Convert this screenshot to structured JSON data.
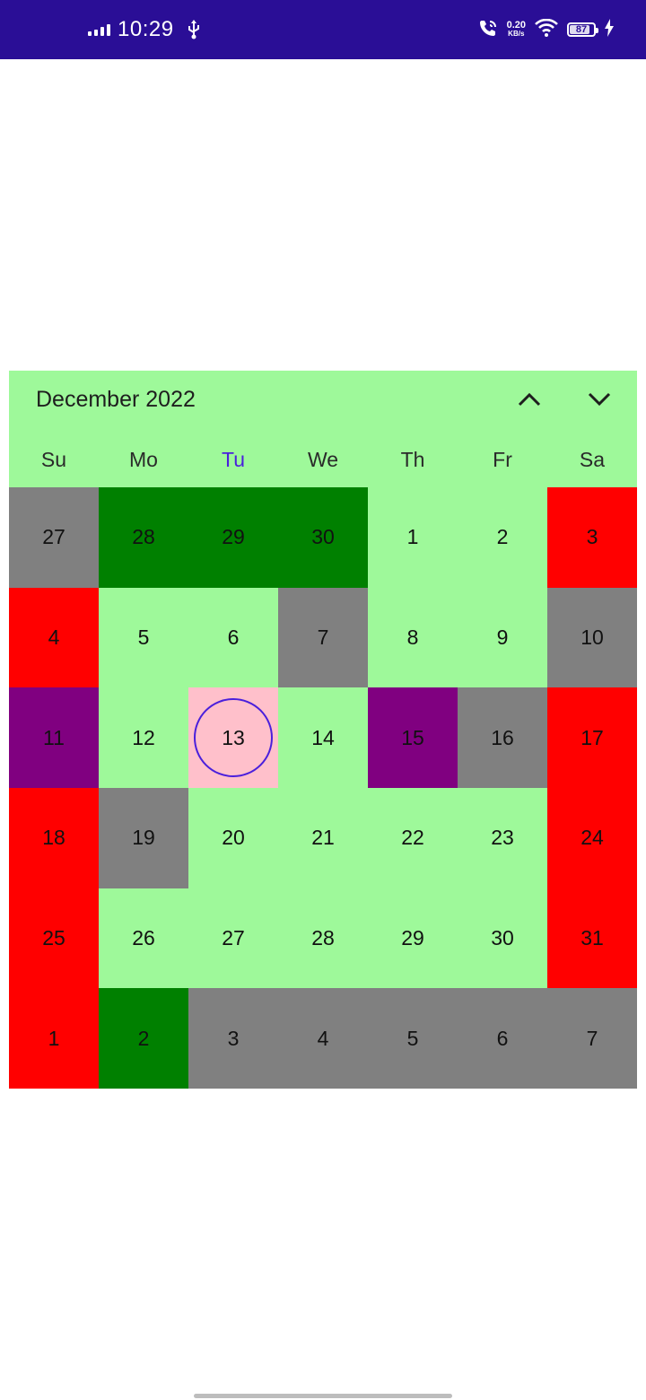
{
  "status_bar": {
    "time": "10:29",
    "net_speed_value": "0.20",
    "net_speed_unit": "KB/s",
    "battery_level": "87",
    "battery_percent": 87,
    "background": "#2a0e96",
    "icons": [
      "signal-icon",
      "usb-icon",
      "wifi-call-icon",
      "wifi-icon",
      "battery-icon",
      "charging-icon"
    ]
  },
  "calendar": {
    "title": "December 2022",
    "nav_icons": {
      "prev": "chevron-up-icon",
      "next": "chevron-down-icon"
    },
    "weekdays": [
      "Su",
      "Mo",
      "Tu",
      "We",
      "Th",
      "Fr",
      "Sa"
    ],
    "today_weekday_index": 2,
    "selected_day": "13",
    "colors": {
      "header_bg": "#9ef99a",
      "light_green": "#9ef99a",
      "green": "#008000",
      "red": "#ff0000",
      "gray": "#808080",
      "purple": "#800080",
      "pink": "#ffc0cb",
      "accent": "#4a1fdc"
    },
    "weeks": [
      [
        {
          "day": "27",
          "color": "gray"
        },
        {
          "day": "28",
          "color": "green"
        },
        {
          "day": "29",
          "color": "green"
        },
        {
          "day": "30",
          "color": "green"
        },
        {
          "day": "1",
          "color": "light_green"
        },
        {
          "day": "2",
          "color": "light_green"
        },
        {
          "day": "3",
          "color": "red"
        }
      ],
      [
        {
          "day": "4",
          "color": "red"
        },
        {
          "day": "5",
          "color": "light_green"
        },
        {
          "day": "6",
          "color": "light_green"
        },
        {
          "day": "7",
          "color": "gray"
        },
        {
          "day": "8",
          "color": "light_green"
        },
        {
          "day": "9",
          "color": "light_green"
        },
        {
          "day": "10",
          "color": "gray"
        }
      ],
      [
        {
          "day": "11",
          "color": "purple"
        },
        {
          "day": "12",
          "color": "light_green"
        },
        {
          "day": "13",
          "color": "pink",
          "selected": true
        },
        {
          "day": "14",
          "color": "light_green"
        },
        {
          "day": "15",
          "color": "purple"
        },
        {
          "day": "16",
          "color": "gray"
        },
        {
          "day": "17",
          "color": "red"
        }
      ],
      [
        {
          "day": "18",
          "color": "red"
        },
        {
          "day": "19",
          "color": "gray"
        },
        {
          "day": "20",
          "color": "light_green"
        },
        {
          "day": "21",
          "color": "light_green"
        },
        {
          "day": "22",
          "color": "light_green"
        },
        {
          "day": "23",
          "color": "light_green"
        },
        {
          "day": "24",
          "color": "red"
        }
      ],
      [
        {
          "day": "25",
          "color": "red"
        },
        {
          "day": "26",
          "color": "light_green"
        },
        {
          "day": "27",
          "color": "light_green"
        },
        {
          "day": "28",
          "color": "light_green"
        },
        {
          "day": "29",
          "color": "light_green"
        },
        {
          "day": "30",
          "color": "light_green"
        },
        {
          "day": "31",
          "color": "red"
        }
      ],
      [
        {
          "day": "1",
          "color": "red"
        },
        {
          "day": "2",
          "color": "green"
        },
        {
          "day": "3",
          "color": "gray"
        },
        {
          "day": "4",
          "color": "gray"
        },
        {
          "day": "5",
          "color": "gray"
        },
        {
          "day": "6",
          "color": "gray"
        },
        {
          "day": "7",
          "color": "gray"
        }
      ]
    ]
  }
}
